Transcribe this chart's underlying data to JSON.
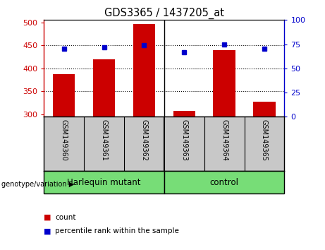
{
  "title": "GDS3365 / 1437205_at",
  "samples": [
    "GSM149360",
    "GSM149361",
    "GSM149362",
    "GSM149363",
    "GSM149364",
    "GSM149365"
  ],
  "counts": [
    387,
    420,
    497,
    308,
    440,
    327
  ],
  "percentiles": [
    70,
    72,
    74,
    67,
    75,
    70
  ],
  "ylim_left": [
    295,
    505
  ],
  "ylim_right": [
    0,
    100
  ],
  "yticks_left": [
    300,
    350,
    400,
    450,
    500
  ],
  "yticks_right": [
    0,
    25,
    50,
    75,
    100
  ],
  "hgrid_vals": [
    350,
    400,
    450
  ],
  "bar_color": "#cc0000",
  "dot_color": "#0000cc",
  "bar_width": 0.55,
  "group1_label": "Harlequin mutant",
  "group2_label": "control",
  "group_color": "#77dd77",
  "genotype_label": "genotype/variation ▶",
  "legend_count_label": "count",
  "legend_pct_label": "percentile rank within the sample",
  "tick_bg_color": "#c8c8c8",
  "plot_bg_color": "white",
  "fig_bg_color": "white"
}
